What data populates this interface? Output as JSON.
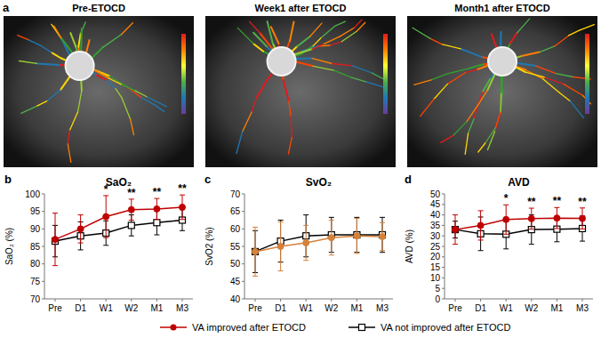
{
  "figure": {
    "panel_label": "a",
    "images": [
      {
        "title": "Pre-ETOCD"
      },
      {
        "title": "Week1 after ETOCD"
      },
      {
        "title": "Month1 after ETOCD"
      }
    ]
  },
  "chart_data": [
    {
      "type": "line",
      "panel_label": "b",
      "title": "SaO₂",
      "y_label": "SaO₂ (%)",
      "categories": [
        "Pre",
        "D1",
        "W1",
        "W2",
        "M1",
        "M3"
      ],
      "ylim": [
        70,
        100
      ],
      "yticks": [
        70,
        75,
        80,
        85,
        90,
        95,
        100
      ],
      "grid": false,
      "series": [
        {
          "name": "VA improved after ETOCD",
          "color": "#c00000",
          "marker": "circle",
          "values": [
            87,
            90,
            93.5,
            95.5,
            95.7,
            96.2
          ],
          "errors": [
            7.5,
            4,
            6,
            3,
            3,
            3.5
          ]
        },
        {
          "name": "VA not improved after ETOCD",
          "color": "#000000",
          "marker": "square",
          "values": [
            86.5,
            88,
            88.8,
            91,
            91.8,
            92.5
          ],
          "errors": [
            4.5,
            4,
            3.5,
            3,
            3.5,
            3
          ]
        }
      ],
      "annotations": [
        {
          "x": "W1",
          "text": "*"
        },
        {
          "x": "W2",
          "text": "**"
        },
        {
          "x": "M1",
          "text": "**"
        },
        {
          "x": "M3",
          "text": "**"
        }
      ]
    },
    {
      "type": "line",
      "panel_label": "c",
      "title": "SvO₂",
      "y_label": "SvO2 (%)",
      "categories": [
        "Pre",
        "D1",
        "W1",
        "W2",
        "M1",
        "M3"
      ],
      "ylim": [
        40,
        70
      ],
      "yticks": [
        40,
        45,
        50,
        55,
        60,
        65,
        70
      ],
      "grid": false,
      "series": [
        {
          "name": "VA improved after ETOCD",
          "color": "#d4813a",
          "marker": "circle",
          "values": [
            53.5,
            55,
            56,
            57.5,
            58,
            57.8
          ],
          "errors": [
            7,
            7,
            5,
            5,
            5,
            4
          ]
        },
        {
          "name": "VA not improved after ETOCD",
          "color": "#000000",
          "marker": "square",
          "values": [
            53.5,
            56.5,
            58,
            58.3,
            58.3,
            58.3
          ],
          "errors": [
            6,
            6,
            6,
            5,
            5,
            5
          ]
        }
      ],
      "annotations": []
    },
    {
      "type": "line",
      "panel_label": "d",
      "title": "AVD",
      "y_label": "AVD (%)",
      "categories": [
        "Pre",
        "D1",
        "W1",
        "W2",
        "M1",
        "M3"
      ],
      "ylim": [
        0,
        50
      ],
      "yticks": [
        0,
        5,
        10,
        15,
        20,
        25,
        30,
        35,
        40,
        45,
        50
      ],
      "grid": false,
      "series": [
        {
          "name": "VA improved after ETOCD",
          "color": "#c00000",
          "marker": "circle",
          "values": [
            33,
            35,
            37.8,
            38.2,
            38.5,
            38.3
          ],
          "errors": [
            7,
            7,
            7,
            5,
            5,
            5
          ]
        },
        {
          "name": "VA not improved after ETOCD",
          "color": "#000000",
          "marker": "square",
          "values": [
            33,
            31,
            30.8,
            33,
            33.2,
            33.5
          ],
          "errors": [
            4,
            8,
            7,
            7,
            6,
            6
          ]
        }
      ],
      "annotations": [
        {
          "x": "W1",
          "text": "*"
        },
        {
          "x": "W2",
          "text": "**"
        },
        {
          "x": "M1",
          "text": "**"
        },
        {
          "x": "M3",
          "text": "**"
        }
      ]
    }
  ]
}
